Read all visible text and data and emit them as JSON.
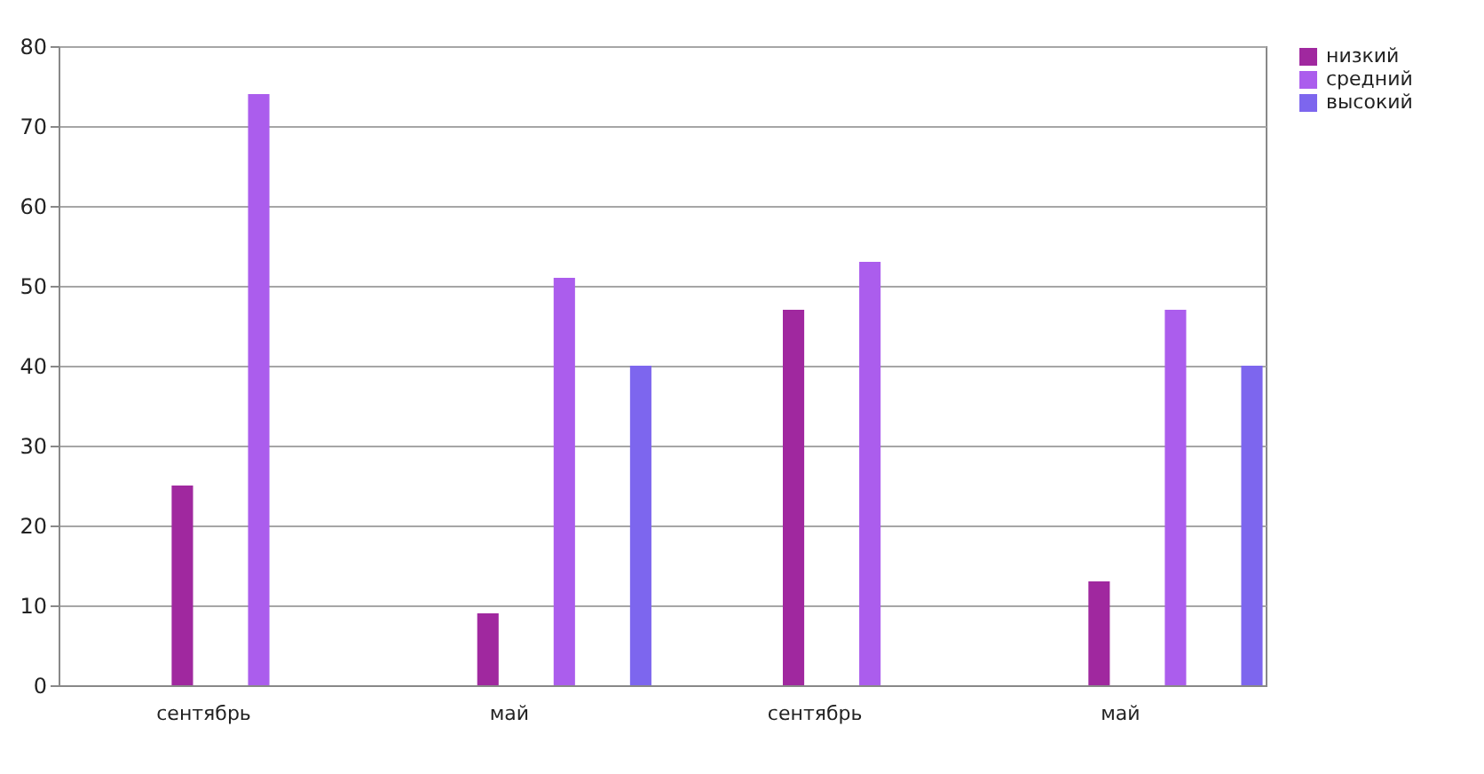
{
  "chart_data": {
    "type": "bar",
    "categories": [
      "сентябрь",
      "май",
      "сентябрь",
      "май"
    ],
    "series": [
      {
        "name": "низкий",
        "color": "#a0289f",
        "values": [
          25,
          9,
          47,
          13
        ]
      },
      {
        "name": "средний",
        "color": "#ab5ded",
        "values": [
          74,
          51,
          53,
          47
        ]
      },
      {
        "name": "высокий",
        "color": "#7d66ee",
        "values": [
          0,
          40,
          0,
          40
        ]
      }
    ],
    "ylim": [
      0,
      80
    ],
    "yticks": [
      0,
      10,
      20,
      30,
      40,
      50,
      60,
      70,
      80
    ],
    "grid": "y",
    "legend": "right"
  }
}
